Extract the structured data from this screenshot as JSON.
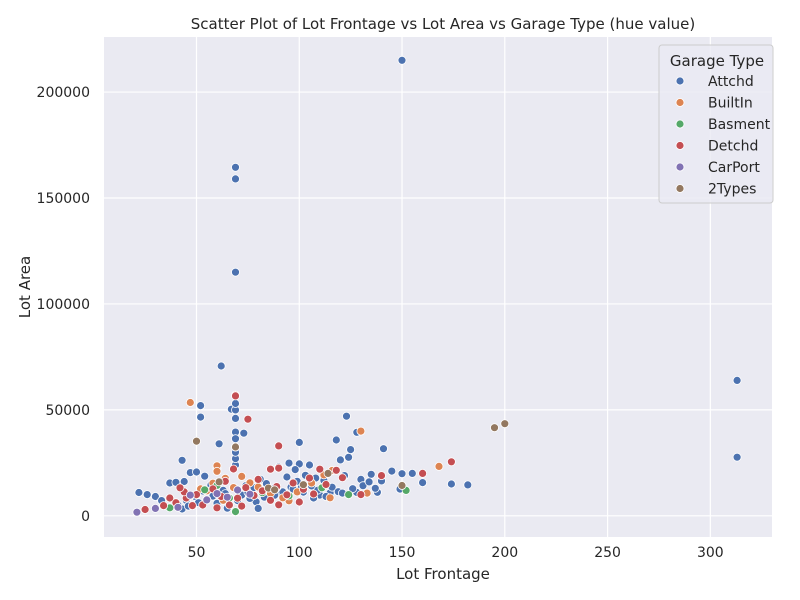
{
  "chart_data": {
    "type": "scatter",
    "title": "Scatter Plot of Lot Frontage vs Lot Area vs Garage Type (hue value)",
    "xlabel": "Lot Frontage",
    "ylabel": "Lot Area",
    "xlim": [
      5,
      330
    ],
    "ylim": [
      -10000,
      226000
    ],
    "xticks": [
      50,
      100,
      150,
      200,
      250,
      300
    ],
    "yticks": [
      0,
      50000,
      100000,
      150000,
      200000
    ],
    "grid": true,
    "legend": {
      "title": "Garage Type",
      "position": "top-right"
    },
    "series": [
      {
        "name": "Attchd",
        "color": "#4c72b0",
        "points": [
          [
            150,
            215000
          ],
          [
            69,
            164500
          ],
          [
            69,
            159000
          ],
          [
            69,
            115000
          ],
          [
            62,
            70700
          ],
          [
            313,
            63900
          ],
          [
            313,
            27650
          ],
          [
            52,
            52000
          ],
          [
            52,
            46600
          ],
          [
            67,
            50300
          ],
          [
            69,
            50000
          ],
          [
            69,
            53000
          ],
          [
            69,
            46000
          ],
          [
            73,
            39000
          ],
          [
            69,
            39500
          ],
          [
            61,
            34000
          ],
          [
            100,
            34650
          ],
          [
            118,
            35800
          ],
          [
            123,
            47000
          ],
          [
            128,
            39400
          ],
          [
            141,
            31700
          ],
          [
            125,
            31250
          ],
          [
            120,
            26400
          ],
          [
            124,
            27600
          ],
          [
            43,
            26200
          ],
          [
            69,
            24000
          ],
          [
            69,
            27000
          ],
          [
            69,
            30000
          ],
          [
            69,
            32500
          ],
          [
            69,
            36400
          ],
          [
            95,
            24900
          ],
          [
            100,
            24500
          ],
          [
            105,
            24000
          ],
          [
            90,
            23000
          ],
          [
            60,
            22200
          ],
          [
            122,
            19000
          ],
          [
            130,
            17200
          ],
          [
            135,
            19600
          ],
          [
            140,
            16500
          ],
          [
            145,
            21100
          ],
          [
            150,
            19900
          ],
          [
            155,
            20000
          ],
          [
            160,
            15700
          ],
          [
            174,
            15000
          ],
          [
            182,
            14600
          ],
          [
            149,
            12600
          ],
          [
            138,
            11100
          ],
          [
            128,
            11000
          ],
          [
            115,
            10800
          ],
          [
            110,
            9800
          ],
          [
            22,
            11000
          ],
          [
            26,
            10000
          ],
          [
            30,
            9100
          ],
          [
            33,
            7200
          ],
          [
            37,
            15500
          ],
          [
            40,
            15800
          ],
          [
            44,
            16200
          ],
          [
            47,
            20400
          ],
          [
            50,
            20700
          ],
          [
            54,
            18700
          ],
          [
            57,
            14500
          ],
          [
            63,
            12000
          ],
          [
            66,
            8600
          ],
          [
            72,
            9800
          ],
          [
            75,
            11100
          ],
          [
            78,
            13300
          ],
          [
            81,
            17300
          ],
          [
            84,
            15200
          ],
          [
            87,
            12700
          ],
          [
            90,
            10400
          ],
          [
            93,
            9600
          ],
          [
            96,
            13500
          ],
          [
            99,
            16300
          ],
          [
            102,
            11200
          ],
          [
            106,
            14100
          ],
          [
            109,
            12100
          ],
          [
            112,
            16700
          ],
          [
            116,
            13500
          ],
          [
            119,
            11400
          ],
          [
            126,
            12800
          ],
          [
            131,
            14200
          ],
          [
            134,
            16000
          ],
          [
            137,
            13000
          ],
          [
            41,
            5100
          ],
          [
            45,
            7300
          ],
          [
            49,
            9200
          ],
          [
            53,
            11700
          ],
          [
            58,
            9300
          ],
          [
            64,
            10500
          ],
          [
            70,
            12300
          ],
          [
            74,
            14200
          ],
          [
            79,
            6600
          ],
          [
            83,
            8800
          ],
          [
            88,
            9700
          ],
          [
            92,
            11300
          ],
          [
            97,
            12600
          ],
          [
            101,
            13200
          ],
          [
            107,
            8400
          ],
          [
            113,
            9100
          ],
          [
            121,
            10700
          ],
          [
            43,
            3200
          ],
          [
            46,
            4600
          ],
          [
            51,
            6200
          ],
          [
            55,
            7400
          ],
          [
            60,
            5900
          ],
          [
            65,
            3600
          ],
          [
            70,
            7200
          ],
          [
            76,
            8200
          ],
          [
            80,
            3500
          ],
          [
            85,
            11600
          ],
          [
            89,
            13200
          ],
          [
            94,
            18300
          ],
          [
            98,
            21800
          ],
          [
            103,
            19100
          ],
          [
            108,
            17800
          ]
        ]
      },
      {
        "name": "BuiltIn",
        "color": "#dd8452",
        "points": [
          [
            47,
            53500
          ],
          [
            130,
            40000
          ],
          [
            69,
            57000
          ],
          [
            168,
            23300
          ],
          [
            60,
            23600
          ],
          [
            116,
            21400
          ],
          [
            133,
            10700
          ],
          [
            115,
            8500
          ],
          [
            95,
            7100
          ],
          [
            60,
            21000
          ],
          [
            52,
            12700
          ],
          [
            58,
            15400
          ],
          [
            64,
            17700
          ],
          [
            72,
            18600
          ],
          [
            80,
            13600
          ],
          [
            86,
            10600
          ],
          [
            92,
            8500
          ],
          [
            99,
            11300
          ],
          [
            106,
            15500
          ],
          [
            112,
            19300
          ],
          [
            47,
            9400
          ],
          [
            55,
            11800
          ],
          [
            63,
            7300
          ],
          [
            68,
            13300
          ],
          [
            76,
            15600
          ]
        ]
      },
      {
        "name": "Basment",
        "color": "#55a868",
        "points": [
          [
            152,
            12000
          ],
          [
            124,
            10000
          ],
          [
            69,
            2000
          ],
          [
            37,
            3800
          ],
          [
            95,
            9400
          ],
          [
            111,
            13200
          ],
          [
            66,
            8400
          ],
          [
            54,
            12300
          ],
          [
            82,
            10900
          ],
          [
            60,
            14300
          ]
        ]
      },
      {
        "name": "Detchd",
        "color": "#c44e52",
        "points": [
          [
            69,
            56600
          ],
          [
            75,
            45600
          ],
          [
            90,
            33000
          ],
          [
            174,
            25500
          ],
          [
            160,
            20000
          ],
          [
            140,
            19000
          ],
          [
            110,
            22000
          ],
          [
            90,
            22500
          ],
          [
            86,
            22000
          ],
          [
            68,
            22100
          ],
          [
            118,
            21500
          ],
          [
            121,
            18000
          ],
          [
            130,
            10000
          ],
          [
            100,
            6500
          ],
          [
            90,
            5200
          ],
          [
            60,
            3800
          ],
          [
            45,
            8400
          ],
          [
            50,
            10000
          ],
          [
            25,
            3000
          ],
          [
            34,
            4800
          ],
          [
            40,
            6200
          ],
          [
            44,
            11300
          ],
          [
            48,
            4800
          ],
          [
            55,
            7700
          ],
          [
            58,
            12700
          ],
          [
            62,
            9100
          ],
          [
            66,
            5100
          ],
          [
            70,
            8300
          ],
          [
            74,
            13300
          ],
          [
            78,
            9600
          ],
          [
            82,
            11800
          ],
          [
            86,
            7300
          ],
          [
            94,
            9900
          ],
          [
            102,
            12500
          ],
          [
            107,
            10300
          ],
          [
            37,
            8400
          ],
          [
            42,
            13200
          ],
          [
            53,
            5100
          ],
          [
            64,
            16300
          ],
          [
            72,
            4600
          ],
          [
            80,
            17200
          ],
          [
            89,
            13800
          ],
          [
            97,
            15500
          ],
          [
            105,
            17800
          ],
          [
            113,
            14800
          ]
        ]
      },
      {
        "name": "CarPort",
        "color": "#8172b3",
        "points": [
          [
            21,
            1700
          ],
          [
            30,
            3500
          ],
          [
            41,
            4000
          ],
          [
            47,
            9800
          ],
          [
            55,
            7500
          ],
          [
            60,
            10500
          ],
          [
            65,
            8800
          ],
          [
            70,
            12200
          ],
          [
            76,
            10200
          ]
        ]
      },
      {
        "name": "2Types",
        "color": "#937860",
        "points": [
          [
            200,
            43500
          ],
          [
            195,
            41600
          ],
          [
            50,
            35200
          ],
          [
            69,
            32500
          ],
          [
            150,
            14300
          ],
          [
            114,
            20000
          ],
          [
            102,
            14700
          ],
          [
            85,
            13100
          ],
          [
            61,
            16000
          ],
          [
            88,
            12300
          ]
        ]
      }
    ]
  }
}
